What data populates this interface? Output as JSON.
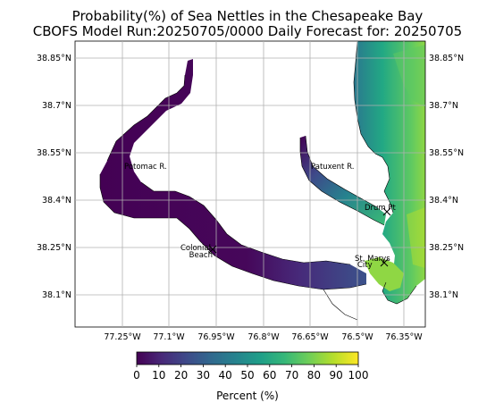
{
  "title_line1": "Probability(%) of Sea Nettles in the Chesapeake Bay",
  "title_line2": "CBOFS Model Run:20250705/0000 Daily Forecast for: 20250705",
  "axes": {
    "lat_labels": [
      "38.85°N",
      "38.7°N",
      "38.55°N",
      "38.4°N",
      "38.25°N",
      "38.1°N"
    ],
    "lon_labels": [
      "77.25°W",
      "77.1°W",
      "76.95°W",
      "76.8°W",
      "76.65°W",
      "76.5°W",
      "76.35°W"
    ]
  },
  "places": {
    "potomac": "Potomac R.",
    "patuxent": "Patuxent R.",
    "drum_point": "Drum Pt",
    "colonial_1": "Colonial",
    "colonial_2": "Beach",
    "st_marys_1": "St. Marys",
    "st_marys_2": "City"
  },
  "colorbar": {
    "label": "Percent (%)",
    "ticks": [
      "0",
      "10",
      "20",
      "30",
      "40",
      "50",
      "60",
      "70",
      "80",
      "90",
      "100"
    ],
    "colors": [
      "#440154",
      "#482878",
      "#3e4989",
      "#31688e",
      "#26828e",
      "#1f9e89",
      "#35b779",
      "#6ece58",
      "#b5de2b",
      "#fde725"
    ]
  }
}
